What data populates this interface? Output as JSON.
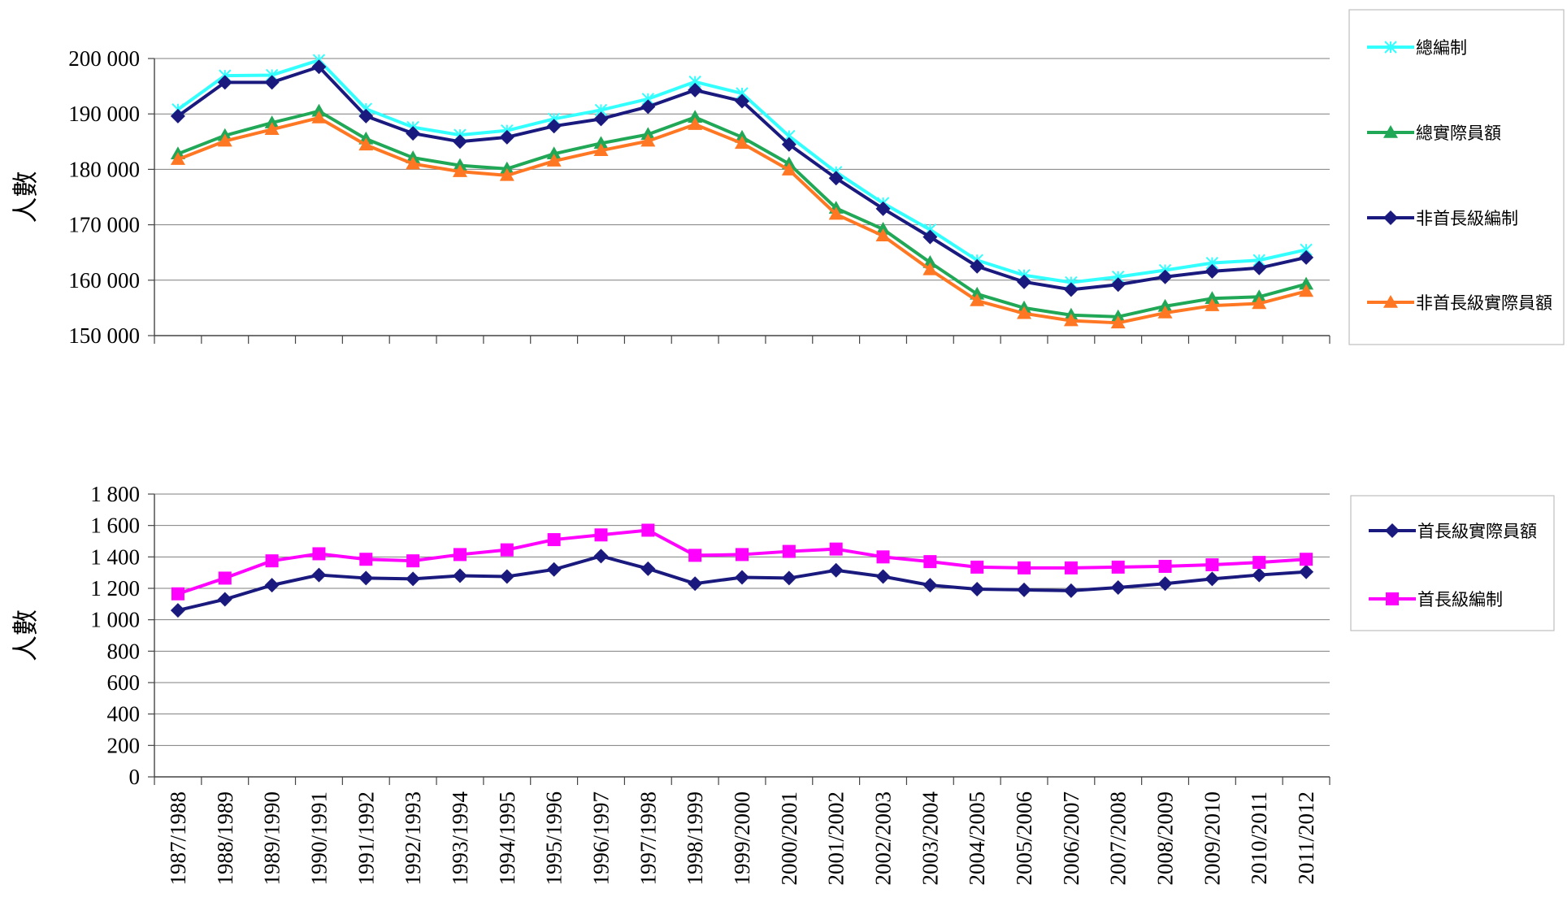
{
  "chart_data": [
    {
      "type": "line",
      "ylabel": "人數",
      "ylim": [
        150000,
        200000
      ],
      "yticks": [
        "200 000",
        "190 000",
        "180 000",
        "170 000",
        "160 000",
        "150 000"
      ],
      "grid": true,
      "legend_position": "right",
      "categories": [
        "1987/1988",
        "1988/1989",
        "1989/1990",
        "1990/1991",
        "1991/1992",
        "1992/1993",
        "1993/1994",
        "1994/1995",
        "1995/1996",
        "1996/1997",
        "1997/1998",
        "1998/1999",
        "1999/2000",
        "2000/2001",
        "2001/2002",
        "2002/2003",
        "2003/2004",
        "2004/2005",
        "2005/2006",
        "2006/2007",
        "2007/2008",
        "2008/2009",
        "2009/2010",
        "2010/2011",
        "2011/2012"
      ],
      "series": [
        {
          "name": "總編制",
          "color": "#33FFFF",
          "marker": "x",
          "values": [
            190800,
            196900,
            197000,
            199700,
            190900,
            187600,
            186200,
            187000,
            189100,
            190700,
            192700,
            195800,
            193700,
            186000,
            179500,
            173900,
            169100,
            163600,
            160900,
            159600,
            160600,
            161800,
            163100,
            163600,
            165500
          ]
        },
        {
          "name": "總實際員額",
          "color": "#21A857",
          "marker": "triangle",
          "values": [
            182800,
            186100,
            188400,
            190500,
            185500,
            182100,
            180700,
            180100,
            182800,
            184700,
            186300,
            189400,
            185800,
            181000,
            173000,
            169200,
            163200,
            157500,
            155000,
            153700,
            153400,
            155300,
            156700,
            157000,
            159300
          ]
        },
        {
          "name": "非首長級編制",
          "color": "#1A1A7E",
          "marker": "diamond",
          "values": [
            189600,
            195700,
            195700,
            198500,
            189600,
            186500,
            185000,
            185800,
            187800,
            189100,
            191300,
            194300,
            192300,
            184500,
            178400,
            172900,
            167800,
            162500,
            159700,
            158300,
            159200,
            160600,
            161600,
            162200,
            164100
          ]
        },
        {
          "name": "非首長級實際員額",
          "color": "#FF7722",
          "marker": "triangle",
          "values": [
            181800,
            185100,
            187200,
            189300,
            184400,
            181000,
            179600,
            178900,
            181500,
            183400,
            185100,
            188100,
            184700,
            179900,
            171900,
            168000,
            161900,
            156300,
            154000,
            152700,
            152300,
            154100,
            155400,
            155800,
            158000
          ]
        }
      ]
    },
    {
      "type": "line",
      "ylabel": "人數",
      "ylim": [
        0,
        1800
      ],
      "yticks": [
        "1 800",
        "1 600",
        "1 400",
        "1 200",
        "1 000",
        "800",
        "600",
        "400",
        "200",
        "0"
      ],
      "grid": true,
      "legend_position": "right",
      "categories": [
        "1987/1988",
        "1988/1989",
        "1989/1990",
        "1990/1991",
        "1991/1992",
        "1992/1993",
        "1993/1994",
        "1994/1995",
        "1995/1996",
        "1996/1997",
        "1997/1998",
        "1998/1999",
        "1999/2000",
        "2000/2001",
        "2001/2002",
        "2002/2003",
        "2003/2004",
        "2004/2005",
        "2005/2006",
        "2006/2007",
        "2007/2008",
        "2008/2009",
        "2009/2010",
        "2010/2011",
        "2011/2012"
      ],
      "series": [
        {
          "name": "首長級實際員額",
          "color": "#1A1A7E",
          "marker": "diamond",
          "values": [
            1060,
            1130,
            1220,
            1285,
            1265,
            1260,
            1280,
            1275,
            1320,
            1405,
            1325,
            1230,
            1270,
            1265,
            1315,
            1275,
            1220,
            1195,
            1190,
            1185,
            1205,
            1230,
            1260,
            1285,
            1305
          ]
        },
        {
          "name": "首長級編制",
          "color": "#FF00FF",
          "marker": "square",
          "values": [
            1165,
            1265,
            1375,
            1420,
            1385,
            1375,
            1415,
            1445,
            1510,
            1540,
            1570,
            1410,
            1415,
            1435,
            1450,
            1400,
            1370,
            1335,
            1330,
            1330,
            1335,
            1340,
            1350,
            1365,
            1385
          ]
        }
      ]
    }
  ]
}
